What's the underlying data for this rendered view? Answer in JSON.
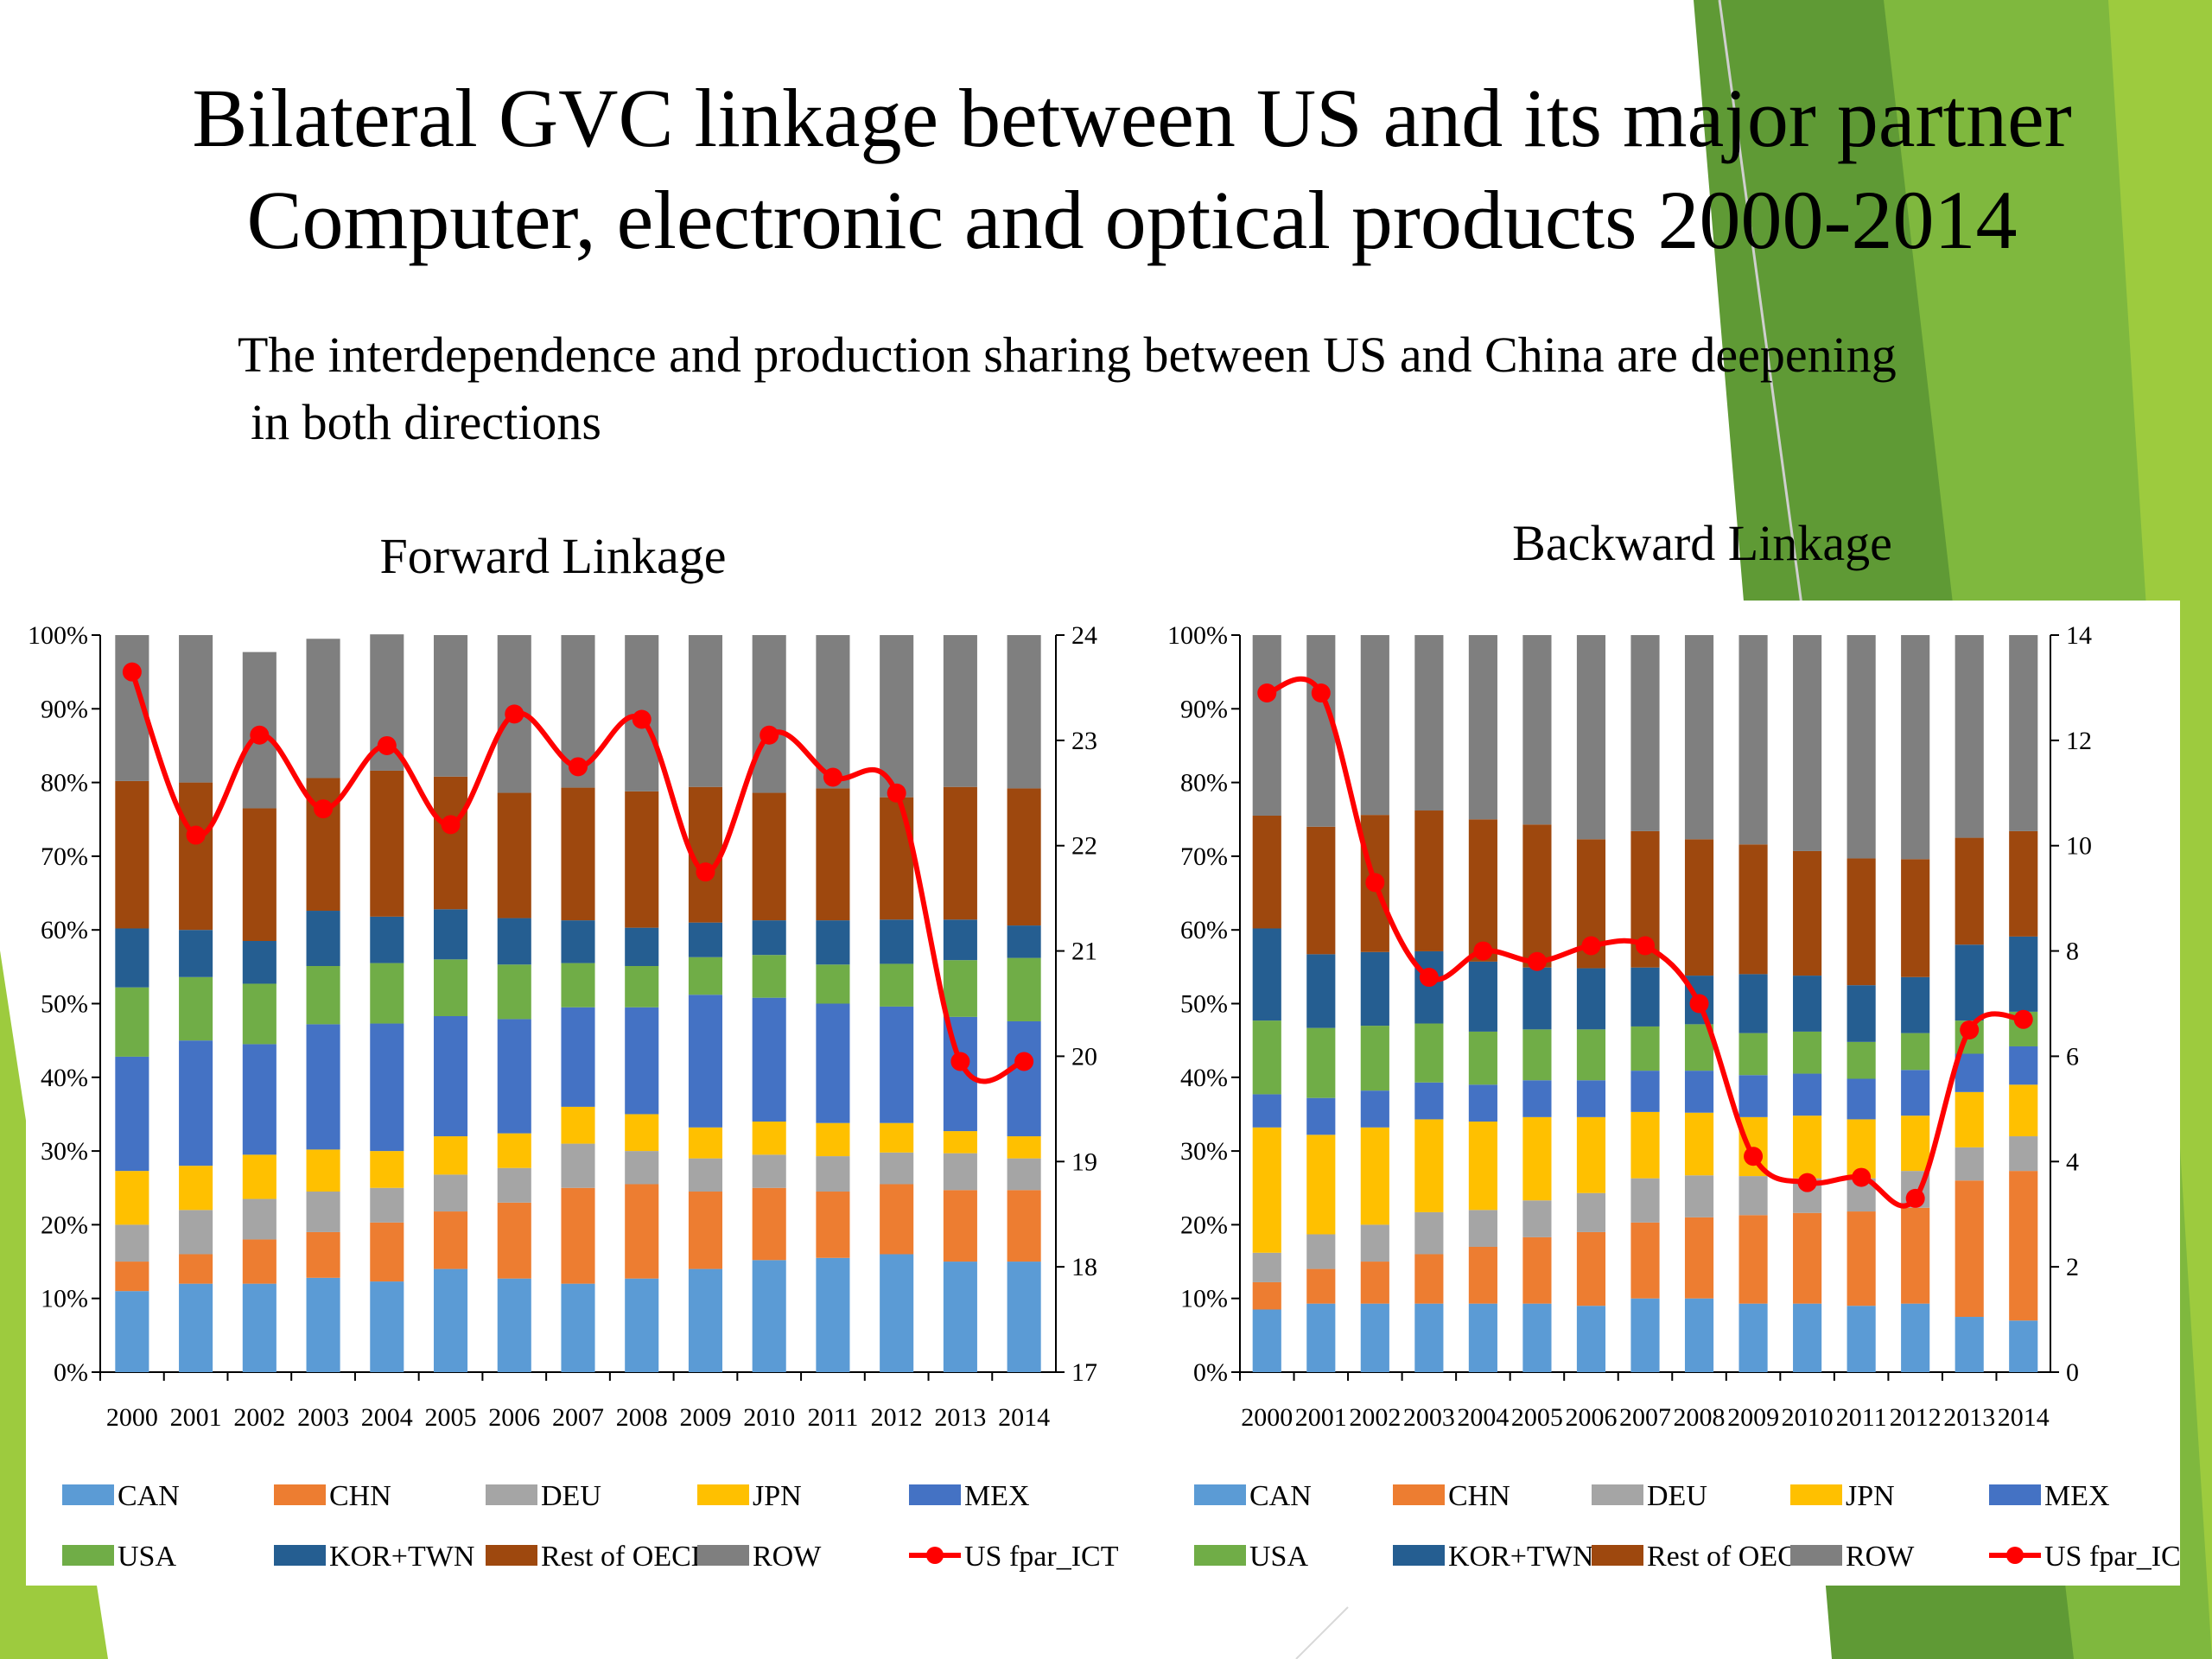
{
  "slide": {
    "title_line1": "Bilateral GVC linkage between US and its major partner",
    "title_line2": "Computer, electronic and optical products 2000-2014",
    "subtitle_line1": "The interdependence and production sharing between US and China are deepening",
    "subtitle_line2": "in both directions",
    "theme_colors": {
      "green_dark": "#5f9a35",
      "green_mid": "#7fb83e",
      "green_light": "#9dcb3e"
    }
  },
  "series_colors": {
    "CAN": "#5b9bd5",
    "CHN": "#ed7d31",
    "DEU": "#a5a5a5",
    "JPN": "#ffc000",
    "MEX": "#4472c4",
    "USA": "#70ad47",
    "KOR+TWN": "#255e91",
    "Rest of OECD": "#9e480e",
    "ROW": "#7f7f7f",
    "US fpar_ICT": "#ff0000"
  },
  "chart_data": [
    {
      "type": "bar",
      "stacked": true,
      "title": "Forward Linkage",
      "categories": [
        "2000",
        "2001",
        "2002",
        "2003",
        "2004",
        "2005",
        "2006",
        "2007",
        "2008",
        "2009",
        "2010",
        "2011",
        "2012",
        "2013",
        "2014"
      ],
      "y_left": {
        "range": [
          0,
          100
        ],
        "unit": "%",
        "ticks": [
          "0%",
          "10%",
          "20%",
          "30%",
          "40%",
          "50%",
          "60%",
          "70%",
          "80%",
          "90%",
          "100%"
        ]
      },
      "y_right": {
        "range": [
          17,
          24
        ],
        "ticks": [
          "17",
          "18",
          "19",
          "20",
          "21",
          "22",
          "23",
          "24"
        ]
      },
      "series": [
        {
          "name": "CAN",
          "values": [
            11,
            12,
            12,
            12.8,
            12.3,
            14,
            12.7,
            12,
            12.7,
            14,
            15.2,
            15.5,
            16,
            15,
            15
          ]
        },
        {
          "name": "CHN",
          "values": [
            4,
            4,
            6,
            6.2,
            8,
            7.8,
            10.3,
            13,
            12.8,
            10.5,
            9.8,
            9,
            9.5,
            9.7,
            9.7
          ]
        },
        {
          "name": "DEU",
          "values": [
            5,
            6,
            5.5,
            5.5,
            4.7,
            5,
            4.7,
            6,
            4.5,
            4.5,
            4.5,
            4.8,
            4.3,
            5,
            4.3
          ]
        },
        {
          "name": "JPN",
          "values": [
            7.3,
            6,
            6,
            5.7,
            5,
            5.2,
            4.7,
            5,
            5,
            4.2,
            4.5,
            4.5,
            4,
            3,
            3
          ]
        },
        {
          "name": "MEX",
          "values": [
            15.5,
            17,
            15,
            17,
            17.3,
            16.3,
            15.5,
            13.5,
            14.5,
            18,
            16.8,
            16.2,
            15.8,
            15.5,
            15.6
          ]
        },
        {
          "name": "USA",
          "values": [
            9.4,
            8.6,
            8.2,
            7.9,
            8.2,
            7.7,
            7.4,
            6,
            5.6,
            5.1,
            5.8,
            5.3,
            5.8,
            7.7,
            8.6
          ]
        },
        {
          "name": "KOR+TWN",
          "values": [
            8,
            6.4,
            5.8,
            7.5,
            6.3,
            6.8,
            6.3,
            5.8,
            5.2,
            4.7,
            4.7,
            6,
            6,
            5.5,
            4.4
          ]
        },
        {
          "name": "Rest of OECD",
          "values": [
            20,
            20,
            18,
            18,
            19.8,
            18,
            17,
            18,
            18.5,
            18.4,
            17.3,
            17.9,
            16.6,
            18,
            18.6
          ]
        },
        {
          "name": "ROW",
          "values": [
            19.8,
            20,
            21.2,
            18.9,
            18.5,
            19.2,
            21.4,
            20.7,
            21.2,
            20.6,
            21.4,
            20.8,
            22,
            20.6,
            20.8
          ]
        }
      ],
      "line": {
        "name": "US fpar_ICT",
        "axis": "right",
        "values": [
          23.65,
          22.1,
          23.05,
          22.35,
          22.95,
          22.2,
          23.25,
          22.75,
          23.2,
          21.75,
          23.05,
          22.65,
          22.5,
          19.95,
          19.95
        ]
      },
      "legend": [
        "CAN",
        "CHN",
        "DEU",
        "JPN",
        "MEX",
        "USA",
        "KOR+TWN",
        "Rest of OECD",
        "ROW",
        "US fpar_ICT"
      ],
      "legend_position": "bottom"
    },
    {
      "type": "bar",
      "stacked": true,
      "title": "Backward Linkage",
      "categories": [
        "2000",
        "2001",
        "2002",
        "2003",
        "2004",
        "2005",
        "2006",
        "2007",
        "2008",
        "2009",
        "2010",
        "2011",
        "2012",
        "2013",
        "2014"
      ],
      "y_left": {
        "range": [
          0,
          100
        ],
        "unit": "%",
        "ticks": [
          "0%",
          "10%",
          "20%",
          "30%",
          "40%",
          "50%",
          "60%",
          "70%",
          "80%",
          "90%",
          "100%"
        ]
      },
      "y_right": {
        "range": [
          0,
          14
        ],
        "ticks": [
          "0",
          "2",
          "4",
          "6",
          "8",
          "10",
          "12",
          "14"
        ]
      },
      "series": [
        {
          "name": "CAN",
          "values": [
            8.5,
            9.3,
            9.3,
            9.3,
            9.3,
            9.3,
            9,
            10,
            10,
            9.3,
            9.3,
            9,
            9.3,
            7.5,
            7
          ]
        },
        {
          "name": "CHN",
          "values": [
            3.7,
            4.7,
            5.7,
            6.7,
            7.7,
            9,
            10,
            10.3,
            11,
            12,
            12.3,
            12.8,
            13,
            18.5,
            20.3
          ]
        },
        {
          "name": "DEU",
          "values": [
            4,
            4.7,
            5,
            5.7,
            5,
            5,
            5.3,
            6,
            5.7,
            5.3,
            4.7,
            4.5,
            5,
            4.5,
            4.7
          ]
        },
        {
          "name": "JPN",
          "values": [
            17,
            13.5,
            13.2,
            12.6,
            12,
            11.3,
            10.3,
            9,
            8.5,
            8,
            8.5,
            8,
            7.5,
            7.5,
            7
          ]
        },
        {
          "name": "MEX",
          "values": [
            4.5,
            5,
            5,
            5,
            5,
            5,
            5,
            5.6,
            5.7,
            5.7,
            5.7,
            5.5,
            6.2,
            5.2,
            5.2
          ]
        },
        {
          "name": "USA",
          "values": [
            10,
            9.5,
            8.8,
            8,
            7.2,
            6.9,
            6.9,
            6,
            6.3,
            5.7,
            5.7,
            5,
            5,
            4.5,
            4.7
          ]
        },
        {
          "name": "KOR+TWN",
          "values": [
            12.5,
            10,
            10,
            9.8,
            9.5,
            8.4,
            8.3,
            8,
            6.6,
            8,
            7.6,
            7.7,
            7.6,
            10.3,
            10.2
          ]
        },
        {
          "name": "Rest of OECD",
          "values": [
            15.3,
            17.3,
            18.6,
            19.1,
            19.3,
            19.4,
            17.5,
            18.5,
            18.5,
            17.6,
            16.9,
            17.2,
            16,
            14.5,
            14.3
          ]
        },
        {
          "name": "ROW",
          "values": [
            24.5,
            26,
            24.4,
            23.8,
            25,
            25.7,
            27.7,
            26.6,
            27.7,
            28.4,
            29.3,
            30.3,
            30.4,
            27.5,
            26.6
          ]
        }
      ],
      "line": {
        "name": "US fpar_ICT",
        "axis": "right",
        "values": [
          12.9,
          12.9,
          9.3,
          7.5,
          8,
          7.8,
          8.1,
          8.1,
          7,
          4.1,
          3.6,
          3.7,
          3.3,
          6.5,
          6.7
        ]
      },
      "legend": [
        "CAN",
        "CHN",
        "DEU",
        "JPN",
        "MEX",
        "USA",
        "KOR+TWN",
        "Rest of OECD",
        "ROW",
        "US fpar_ICT"
      ],
      "legend_position": "bottom"
    }
  ]
}
